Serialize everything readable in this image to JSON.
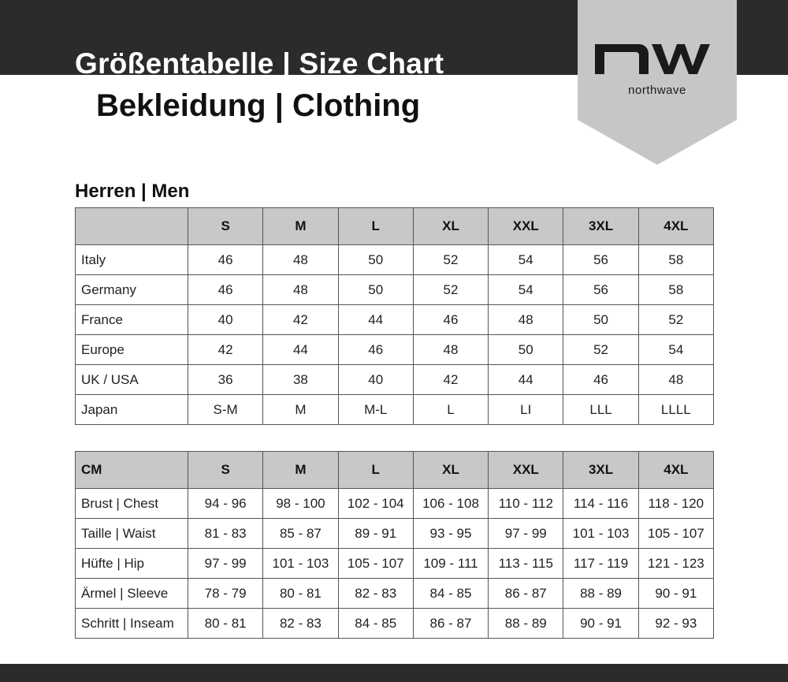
{
  "header": {
    "title": "Größentabelle | Size Chart",
    "subtitle": "Bekleidung | Clothing",
    "logo_text": "northwave",
    "logo_mark": "nw"
  },
  "section_title": "Herren | Men",
  "colors": {
    "band": "#2b2b2b",
    "logo_bg": "#c6c6c6",
    "header_cell": "#c8c8c8"
  },
  "size_table": {
    "corner": "",
    "sizes": [
      "S",
      "M",
      "L",
      "XL",
      "XXL",
      "3XL",
      "4XL"
    ],
    "rows": [
      {
        "label": "Italy",
        "values": [
          "46",
          "48",
          "50",
          "52",
          "54",
          "56",
          "58"
        ]
      },
      {
        "label": "Germany",
        "values": [
          "46",
          "48",
          "50",
          "52",
          "54",
          "56",
          "58"
        ]
      },
      {
        "label": "France",
        "values": [
          "40",
          "42",
          "44",
          "46",
          "48",
          "50",
          "52"
        ]
      },
      {
        "label": "Europe",
        "values": [
          "42",
          "44",
          "46",
          "48",
          "50",
          "52",
          "54"
        ]
      },
      {
        "label": "UK / USA",
        "values": [
          "36",
          "38",
          "40",
          "42",
          "44",
          "46",
          "48"
        ]
      },
      {
        "label": "Japan",
        "values": [
          "S-M",
          "M",
          "M-L",
          "L",
          "LI",
          "LLL",
          "LLLL"
        ]
      }
    ]
  },
  "cm_table": {
    "corner": "CM",
    "sizes": [
      "S",
      "M",
      "L",
      "XL",
      "XXL",
      "3XL",
      "4XL"
    ],
    "rows": [
      {
        "label": "Brust | Chest",
        "values": [
          "94 - 96",
          "98 - 100",
          "102 - 104",
          "106 - 108",
          "110 - 112",
          "114 - 116",
          "118 - 120"
        ]
      },
      {
        "label": "Taille | Waist",
        "values": [
          "81 - 83",
          "85 - 87",
          "89 - 91",
          "93 - 95",
          "97 - 99",
          "101 - 103",
          "105 - 107"
        ]
      },
      {
        "label": "Hüfte | Hip",
        "values": [
          "97 - 99",
          "101 - 103",
          "105 - 107",
          "109 - 111",
          "113 - 115",
          "117 - 119",
          "121 - 123"
        ]
      },
      {
        "label": "Ärmel | Sleeve",
        "values": [
          "78 - 79",
          "80 - 81",
          "82 - 83",
          "84 - 85",
          "86 - 87",
          "88 - 89",
          "90 - 91"
        ]
      },
      {
        "label": "Schritt | Inseam",
        "values": [
          "80 - 81",
          "82 - 83",
          "84 - 85",
          "86 - 87",
          "88 - 89",
          "90 - 91",
          "92 - 93"
        ]
      }
    ]
  }
}
